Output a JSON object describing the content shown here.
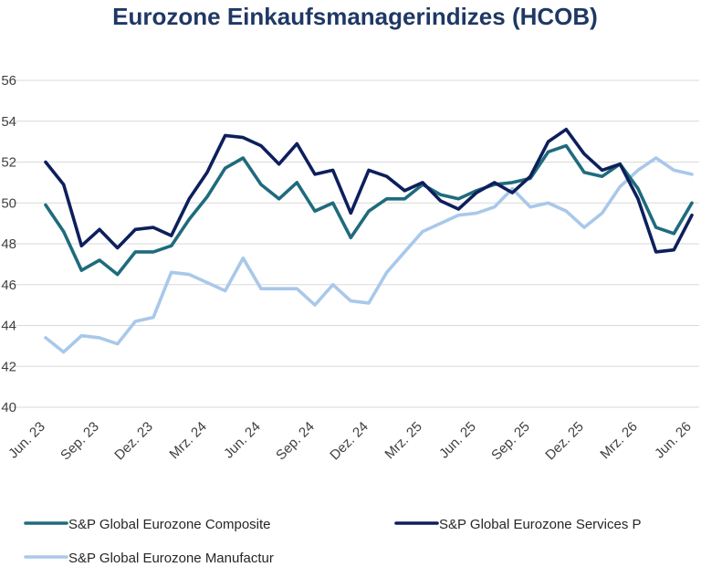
{
  "chart_data": {
    "type": "line",
    "title": "Eurozone Einkaufsmanagerindizes (HCOB)",
    "ylim": [
      40,
      56
    ],
    "yticks": [
      40,
      42,
      44,
      46,
      48,
      50,
      52,
      54,
      56
    ],
    "ytick_labels": [
      "40",
      "42",
      "44",
      "46",
      "48",
      "50",
      "52",
      "54",
      "56"
    ],
    "grid": true,
    "legend_position": "bottom",
    "x": [
      "2023-06",
      "2023-07",
      "2023-08",
      "2023-09",
      "2023-10",
      "2023-11",
      "2023-12",
      "2024-01",
      "2024-02",
      "2024-03",
      "2024-04",
      "2024-05",
      "2024-06",
      "2024-07",
      "2024-08",
      "2024-09",
      "2024-10",
      "2024-11",
      "2024-12",
      "2025-01",
      "2025-02",
      "2025-03",
      "2025-04",
      "2025-05",
      "2025-06",
      "2025-07",
      "2025-08",
      "2025-09",
      "2025-10",
      "2025-11",
      "2025-12",
      "2026-01",
      "2026-02",
      "2026-03",
      "2026-04",
      "2026-05",
      "2026-06"
    ],
    "xtick_labels": [
      {
        "x": "2023-06",
        "label": "Jun. 23"
      },
      {
        "x": "2023-09",
        "label": "Sep. 23"
      },
      {
        "x": "2023-12",
        "label": "Dez. 23"
      },
      {
        "x": "2024-03",
        "label": "Mrz. 24"
      },
      {
        "x": "2024-06",
        "label": "Jun. 24"
      },
      {
        "x": "2024-09",
        "label": "Sep. 24"
      },
      {
        "x": "2024-12",
        "label": "Dez. 24"
      },
      {
        "x": "2025-03",
        "label": "Mrz. 25"
      },
      {
        "x": "2025-06",
        "label": "Jun. 25"
      },
      {
        "x": "2025-09",
        "label": "Sep. 25"
      },
      {
        "x": "2025-12",
        "label": "Dez. 25"
      },
      {
        "x": "2026-03",
        "label": "Mrz. 26"
      },
      {
        "x": "2026-06",
        "label": "Jun. 26"
      }
    ],
    "series": [
      {
        "name": "S&P Global Eurozone Composite",
        "color": "#1f6b7d",
        "values": [
          49.9,
          48.6,
          46.7,
          47.2,
          46.5,
          47.6,
          47.6,
          47.9,
          49.2,
          50.3,
          51.7,
          52.2,
          50.9,
          50.2,
          51.0,
          49.6,
          50.0,
          48.3,
          49.6,
          50.2,
          50.2,
          50.9,
          50.4,
          50.2,
          50.6,
          50.9,
          51.0,
          51.2,
          52.5,
          52.8,
          51.5,
          51.3,
          51.9,
          50.7,
          48.8,
          48.5,
          50.0
        ]
      },
      {
        "name": "S&P Global Eurozone Services P",
        "color": "#0d1f5c",
        "values": [
          52.0,
          50.9,
          47.9,
          48.7,
          47.8,
          48.7,
          48.8,
          48.4,
          50.2,
          51.5,
          53.3,
          53.2,
          52.8,
          51.9,
          52.9,
          51.4,
          51.6,
          49.5,
          51.6,
          51.3,
          50.6,
          51.0,
          50.1,
          49.7,
          50.5,
          51.0,
          50.5,
          51.3,
          53.0,
          53.6,
          52.4,
          51.6,
          51.9,
          50.2,
          47.6,
          47.7,
          49.4
        ]
      },
      {
        "name": "S&P Global Eurozone Manufactur",
        "color": "#a9c8ea",
        "values": [
          43.4,
          42.7,
          43.5,
          43.4,
          43.1,
          44.2,
          44.4,
          46.6,
          46.5,
          46.1,
          45.7,
          47.3,
          45.8,
          45.8,
          45.8,
          45.0,
          46.0,
          45.2,
          45.1,
          46.6,
          47.6,
          48.6,
          49.0,
          49.4,
          49.5,
          49.8,
          50.7,
          49.8,
          50.0,
          49.6,
          48.8,
          49.5,
          50.8,
          51.6,
          52.2,
          51.6,
          51.4
        ]
      }
    ]
  }
}
